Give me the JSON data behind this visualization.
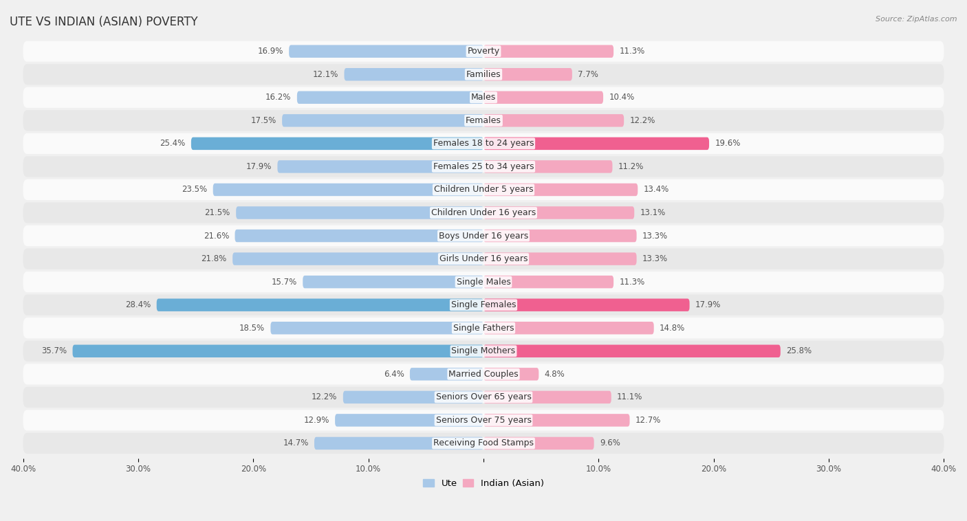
{
  "title": "UTE VS INDIAN (ASIAN) POVERTY",
  "source": "Source: ZipAtlas.com",
  "categories": [
    "Poverty",
    "Families",
    "Males",
    "Females",
    "Females 18 to 24 years",
    "Females 25 to 34 years",
    "Children Under 5 years",
    "Children Under 16 years",
    "Boys Under 16 years",
    "Girls Under 16 years",
    "Single Males",
    "Single Females",
    "Single Fathers",
    "Single Mothers",
    "Married Couples",
    "Seniors Over 65 years",
    "Seniors Over 75 years",
    "Receiving Food Stamps"
  ],
  "ute_values": [
    16.9,
    12.1,
    16.2,
    17.5,
    25.4,
    17.9,
    23.5,
    21.5,
    21.6,
    21.8,
    15.7,
    28.4,
    18.5,
    35.7,
    6.4,
    12.2,
    12.9,
    14.7
  ],
  "indian_values": [
    11.3,
    7.7,
    10.4,
    12.2,
    19.6,
    11.2,
    13.4,
    13.1,
    13.3,
    13.3,
    11.3,
    17.9,
    14.8,
    25.8,
    4.8,
    11.1,
    12.7,
    9.6
  ],
  "ute_color": "#a8c8e8",
  "indian_color": "#f4a8c0",
  "ute_highlight_color": "#6aaed6",
  "indian_highlight_color": "#f06090",
  "highlight_rows": [
    4,
    11,
    13
  ],
  "max_val": 40.0,
  "bg_color": "#f0f0f0",
  "row_bg_light": "#fafafa",
  "row_bg_dark": "#e8e8e8",
  "label_fontsize": 9.0,
  "value_fontsize": 8.5,
  "title_fontsize": 12
}
